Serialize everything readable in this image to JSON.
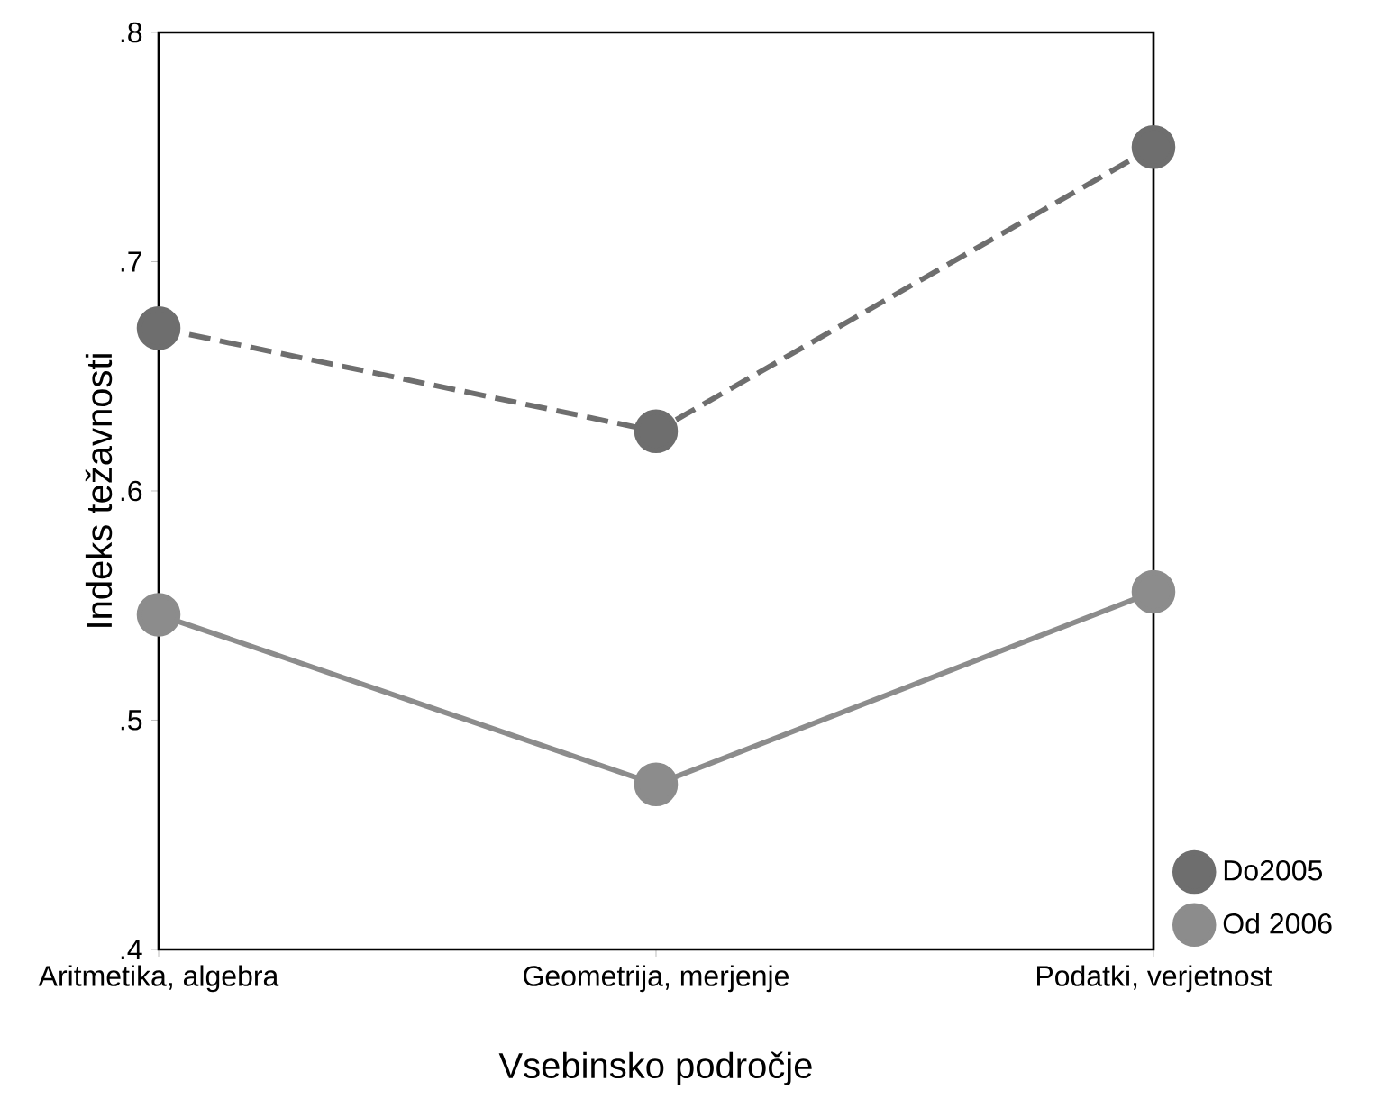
{
  "chart_data": {
    "type": "line",
    "xlabel": "Vsebinsko področje",
    "ylabel": "Indeks težavnosti",
    "categories": [
      "Aritmetika, algebra",
      "Geometrija, merjenje",
      "Podatki, verjetnost"
    ],
    "series": [
      {
        "name": "Do2005",
        "color": "#6e6e6e",
        "line_style": "dashed",
        "values": [
          0.671,
          0.626,
          0.75
        ]
      },
      {
        "name": "Od 2006",
        "color": "#8c8c8c",
        "line_style": "solid",
        "values": [
          0.546,
          0.472,
          0.556
        ]
      }
    ],
    "ylim": [
      0.4,
      0.8
    ],
    "yticks": [
      {
        "value": 0.4,
        "label": ".4"
      },
      {
        "value": 0.5,
        "label": ".5"
      },
      {
        "value": 0.6,
        "label": ".6"
      },
      {
        "value": 0.7,
        "label": ".7"
      },
      {
        "value": 0.8,
        "label": ".8"
      }
    ],
    "marker": "circle",
    "legend": "bottom right",
    "grid": false
  }
}
